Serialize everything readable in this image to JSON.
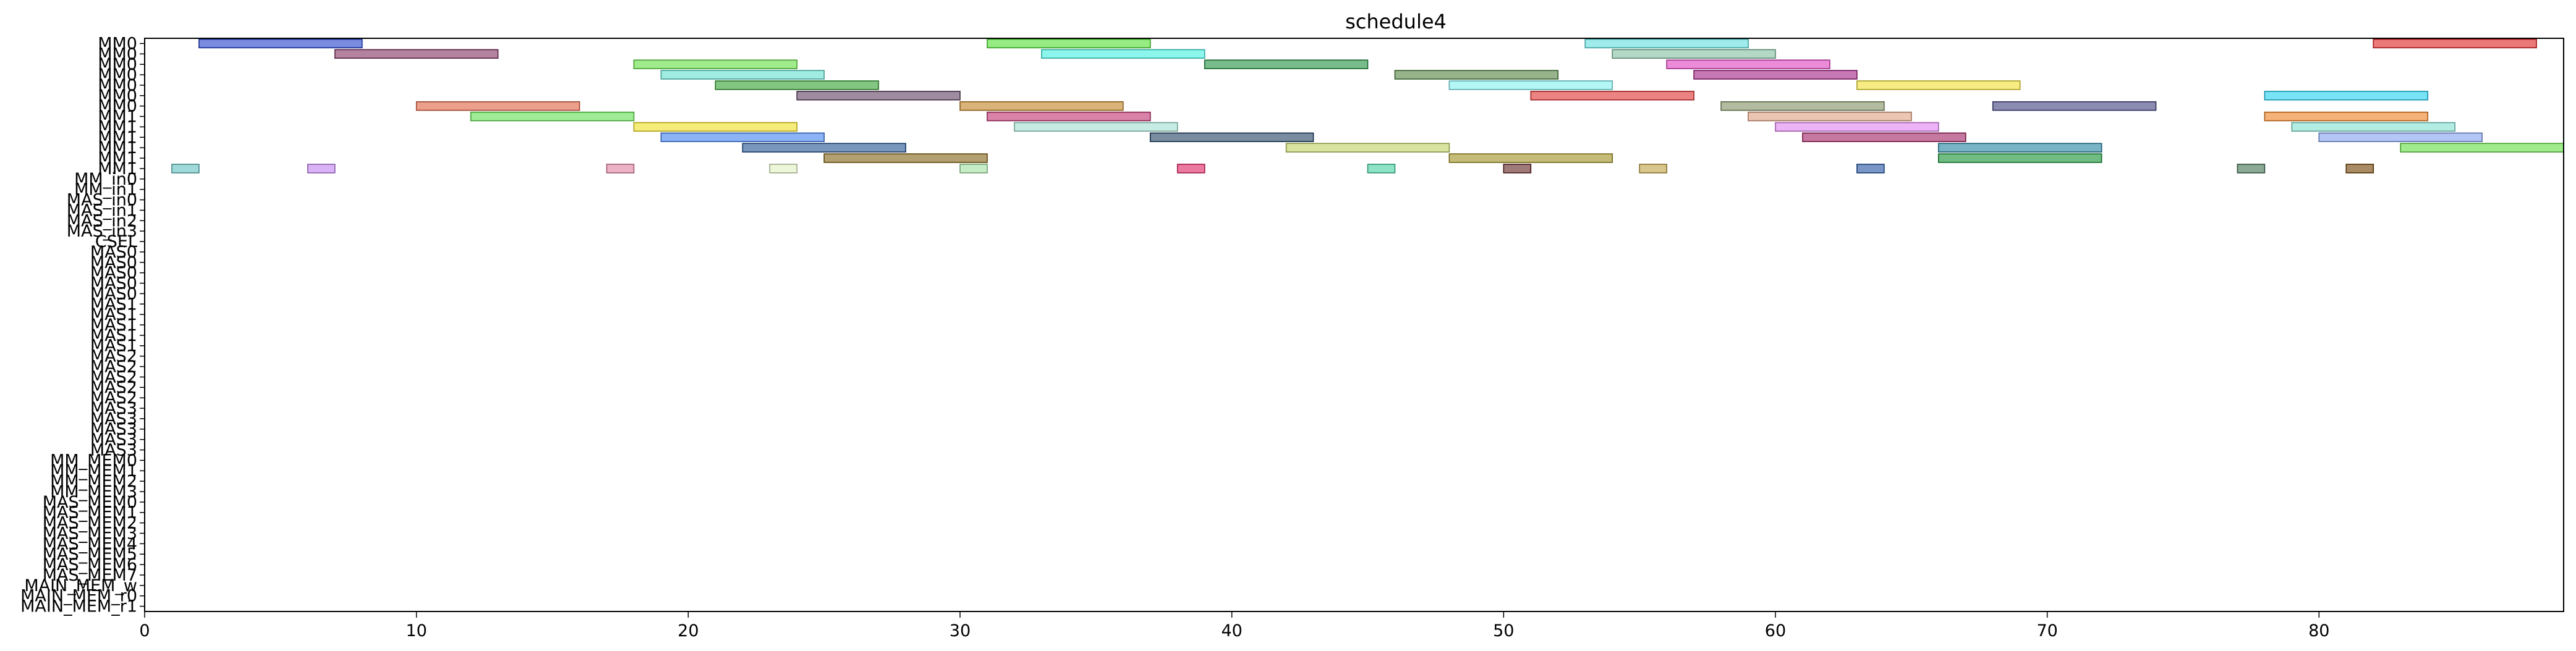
{
  "chart_data": {
    "type": "gantt",
    "title": "schedule4",
    "xlabel": "",
    "ylabel": "",
    "xlim": [
      0,
      89
    ],
    "x_ticks": [
      0,
      10,
      20,
      30,
      40,
      50,
      60,
      70,
      80
    ],
    "grid": false,
    "rows": [
      "MM0",
      "MM0",
      "MM0",
      "MM0",
      "MM0",
      "MM0",
      "MM0",
      "MM1",
      "MM1",
      "MM1",
      "MM1",
      "MM1",
      "MM1",
      "MM_in0",
      "MM_in1",
      "MAS_in0",
      "MAS_in1",
      "MAS_in2",
      "MAS_in3",
      "CSEL",
      "MAS0",
      "MAS0",
      "MAS0",
      "MAS0",
      "MAS0",
      "MAS1",
      "MAS1",
      "MAS1",
      "MAS1",
      "MAS1",
      "MAS2",
      "MAS2",
      "MAS2",
      "MAS2",
      "MAS2",
      "MAS3",
      "MAS3",
      "MAS3",
      "MAS3",
      "MAS3",
      "MM_MEM0",
      "MM_MEM1",
      "MM_MEM2",
      "MM_MEM3",
      "MAS_MEM0",
      "MAS_MEM1",
      "MAS_MEM2",
      "MAS_MEM3",
      "MAS_MEM4",
      "MAS_MEM5",
      "MAS_MEM6",
      "MAS_MEM7",
      "MAIN_MEM_w",
      "MAIN_MEM_r0",
      "MAIN_MEM_r1"
    ],
    "tasks": [
      {
        "row": 0,
        "start": 2,
        "end": 8,
        "color": "#2040cc"
      },
      {
        "row": 0,
        "start": 31,
        "end": 37,
        "color": "#50e030"
      },
      {
        "row": 0,
        "start": 53,
        "end": 59,
        "color": "#60e0e0"
      },
      {
        "row": 0,
        "start": 82,
        "end": 88,
        "color": "#e02020"
      },
      {
        "row": 1,
        "start": 7,
        "end": 13,
        "color": "#803060"
      },
      {
        "row": 1,
        "start": 33,
        "end": 39,
        "color": "#40f0e0"
      },
      {
        "row": 1,
        "start": 54,
        "end": 60,
        "color": "#80c0a0"
      },
      {
        "row": 2,
        "start": 18,
        "end": 24,
        "color": "#60e040"
      },
      {
        "row": 2,
        "start": 39,
        "end": 45,
        "color": "#209040"
      },
      {
        "row": 2,
        "start": 56,
        "end": 62,
        "color": "#e040c0"
      },
      {
        "row": 3,
        "start": 19,
        "end": 25,
        "color": "#60e0d0"
      },
      {
        "row": 3,
        "start": 46,
        "end": 52,
        "color": "#508040"
      },
      {
        "row": 3,
        "start": 57,
        "end": 63,
        "color": "#a02080"
      },
      {
        "row": 4,
        "start": 21,
        "end": 27,
        "color": "#30a030"
      },
      {
        "row": 4,
        "start": 48,
        "end": 54,
        "color": "#80f0f0"
      },
      {
        "row": 4,
        "start": 63,
        "end": 69,
        "color": "#f0e030"
      },
      {
        "row": 5,
        "start": 24,
        "end": 30,
        "color": "#604060"
      },
      {
        "row": 5,
        "start": 51,
        "end": 57,
        "color": "#e03030"
      },
      {
        "row": 5,
        "start": 78,
        "end": 84,
        "color": "#20d0f0"
      },
      {
        "row": 6,
        "start": 10,
        "end": 16,
        "color": "#e06040"
      },
      {
        "row": 6,
        "start": 30,
        "end": 36,
        "color": "#c08020"
      },
      {
        "row": 6,
        "start": 58,
        "end": 64,
        "color": "#809060"
      },
      {
        "row": 6,
        "start": 68,
        "end": 74,
        "color": "#404080"
      },
      {
        "row": 7,
        "start": 12,
        "end": 18,
        "color": "#60e050"
      },
      {
        "row": 7,
        "start": 31,
        "end": 37,
        "color": "#c03070"
      },
      {
        "row": 7,
        "start": 59,
        "end": 65,
        "color": "#e0a080"
      },
      {
        "row": 7,
        "start": 78,
        "end": 84,
        "color": "#f08020"
      },
      {
        "row": 8,
        "start": 18,
        "end": 24,
        "color": "#f0e020"
      },
      {
        "row": 8,
        "start": 32,
        "end": 38,
        "color": "#a0e0d0"
      },
      {
        "row": 8,
        "start": 60,
        "end": 66,
        "color": "#e080f0"
      },
      {
        "row": 8,
        "start": 79,
        "end": 85,
        "color": "#80e0d0"
      },
      {
        "row": 9,
        "start": 19,
        "end": 25,
        "color": "#4080f0"
      },
      {
        "row": 9,
        "start": 37,
        "end": 43,
        "color": "#204060"
      },
      {
        "row": 9,
        "start": 61,
        "end": 67,
        "color": "#a02060"
      },
      {
        "row": 9,
        "start": 80,
        "end": 86,
        "color": "#80a0f0"
      },
      {
        "row": 10,
        "start": 22,
        "end": 28,
        "color": "#205090"
      },
      {
        "row": 10,
        "start": 42,
        "end": 48,
        "color": "#c0d060"
      },
      {
        "row": 10,
        "start": 66,
        "end": 72,
        "color": "#2080a0"
      },
      {
        "row": 10,
        "start": 83,
        "end": 89,
        "color": "#60e040"
      },
      {
        "row": 11,
        "start": 25,
        "end": 31,
        "color": "#806010"
      },
      {
        "row": 11,
        "start": 48,
        "end": 54,
        "color": "#a09020"
      },
      {
        "row": 11,
        "start": 66,
        "end": 72,
        "color": "#109030"
      },
      {
        "row": 12,
        "start": 1,
        "end": 2,
        "color": "#60c0c0"
      },
      {
        "row": 12,
        "start": 6,
        "end": 7,
        "color": "#c080f0"
      },
      {
        "row": 12,
        "start": 17,
        "end": 18,
        "color": "#e080a0"
      },
      {
        "row": 12,
        "start": 23,
        "end": 24,
        "color": "#e0f0c0"
      },
      {
        "row": 12,
        "start": 30,
        "end": 31,
        "color": "#a0e0a0"
      },
      {
        "row": 12,
        "start": 38,
        "end": 39,
        "color": "#e02060"
      },
      {
        "row": 12,
        "start": 45,
        "end": 46,
        "color": "#40d0a0"
      },
      {
        "row": 12,
        "start": 50,
        "end": 51,
        "color": "#602020"
      },
      {
        "row": 12,
        "start": 55,
        "end": 56,
        "color": "#c0a040"
      },
      {
        "row": 12,
        "start": 63,
        "end": 64,
        "color": "#2050a0"
      },
      {
        "row": 12,
        "start": 77,
        "end": 78,
        "color": "#407050"
      },
      {
        "row": 12,
        "start": 81,
        "end": 82,
        "color": "#704000"
      }
    ]
  }
}
